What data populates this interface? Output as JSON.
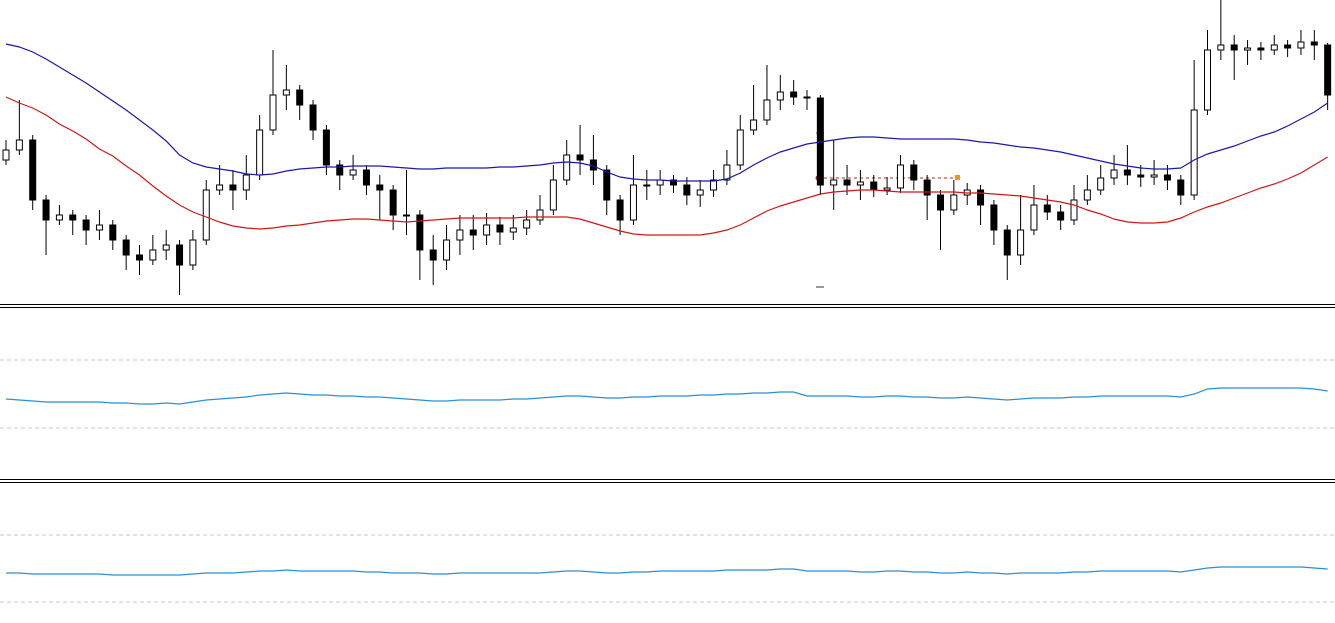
{
  "chart_data": [
    {
      "type": "candlestick",
      "up_color": "#ffffff",
      "down_color": "#000000",
      "ylim": [
        0,
        305
      ],
      "open": [
        145,
        155,
        165,
        105,
        85,
        90,
        85,
        75,
        80,
        65,
        50,
        45,
        55,
        60,
        40,
        65,
        115,
        120,
        115,
        130,
        175,
        210,
        215,
        200,
        175,
        140,
        130,
        135,
        120,
        115,
        90,
        90,
        55,
        45,
        65,
        75,
        70,
        80,
        73,
        77,
        85,
        95,
        125,
        150,
        145,
        135,
        105,
        85,
        120,
        120,
        125,
        120,
        110,
        115,
        125,
        140,
        175,
        185,
        205,
        213,
        208,
        207,
        120,
        125,
        120,
        123,
        115,
        117,
        140,
        125,
        110,
        95,
        110,
        115,
        100,
        75,
        50,
        75,
        100,
        93,
        85,
        105,
        115,
        127,
        135,
        130,
        128,
        130,
        125,
        110,
        195,
        255,
        260,
        255,
        257,
        255,
        260,
        257,
        263,
        260
      ],
      "high": [
        165,
        205,
        170,
        110,
        100,
        95,
        90,
        95,
        85,
        70,
        60,
        70,
        75,
        65,
        75,
        125,
        140,
        135,
        150,
        190,
        255,
        240,
        220,
        205,
        180,
        145,
        150,
        140,
        130,
        120,
        135,
        95,
        70,
        80,
        90,
        90,
        92,
        88,
        90,
        95,
        110,
        140,
        165,
        180,
        170,
        140,
        110,
        150,
        135,
        135,
        130,
        128,
        125,
        135,
        155,
        190,
        220,
        240,
        230,
        225,
        215,
        210,
        165,
        140,
        135,
        130,
        128,
        150,
        145,
        130,
        115,
        125,
        122,
        120,
        105,
        80,
        110,
        120,
        110,
        100,
        120,
        130,
        140,
        150,
        160,
        140,
        145,
        140,
        130,
        245,
        275,
        305,
        270,
        265,
        263,
        270,
        265,
        275,
        275,
        262
      ],
      "low": [
        140,
        150,
        95,
        50,
        80,
        70,
        60,
        65,
        55,
        35,
        30,
        40,
        45,
        10,
        35,
        60,
        110,
        95,
        105,
        125,
        170,
        195,
        185,
        165,
        130,
        115,
        125,
        110,
        85,
        75,
        70,
        25,
        20,
        35,
        50,
        55,
        60,
        60,
        65,
        70,
        80,
        90,
        120,
        130,
        120,
        90,
        70,
        80,
        105,
        110,
        112,
        100,
        98,
        108,
        120,
        135,
        170,
        180,
        195,
        200,
        195,
        110,
        95,
        110,
        105,
        108,
        110,
        112,
        115,
        85,
        55,
        90,
        100,
        80,
        60,
        25,
        40,
        70,
        85,
        75,
        80,
        100,
        110,
        120,
        120,
        118,
        120,
        115,
        100,
        105,
        190,
        245,
        225,
        240,
        245,
        250,
        248,
        250,
        245,
        195
      ],
      "close": [
        155,
        165,
        105,
        85,
        90,
        85,
        75,
        80,
        65,
        50,
        45,
        55,
        60,
        40,
        65,
        115,
        120,
        115,
        130,
        175,
        210,
        215,
        200,
        175,
        140,
        130,
        135,
        120,
        115,
        90,
        90,
        55,
        45,
        65,
        75,
        70,
        80,
        73,
        77,
        85,
        95,
        125,
        150,
        145,
        135,
        105,
        85,
        120,
        120,
        125,
        120,
        110,
        115,
        125,
        140,
        175,
        185,
        205,
        213,
        208,
        207,
        120,
        125,
        120,
        123,
        115,
        117,
        140,
        125,
        110,
        95,
        110,
        115,
        100,
        75,
        50,
        75,
        100,
        93,
        85,
        105,
        115,
        127,
        135,
        130,
        128,
        130,
        125,
        110,
        195,
        255,
        260,
        255,
        257,
        255,
        260,
        257,
        263,
        260,
        210
      ],
      "series": [
        {
          "color": "#1a1aa8",
          "values": [
            261,
            258,
            253,
            246,
            238,
            230,
            222,
            213,
            204,
            195,
            185,
            175,
            164,
            150,
            142,
            138,
            136,
            134,
            131,
            130,
            131,
            134,
            136,
            137,
            138,
            138,
            139,
            139,
            139,
            138,
            137,
            136,
            136,
            137,
            137,
            137,
            137,
            138,
            138,
            139,
            140,
            142,
            143,
            142,
            139,
            133,
            128,
            126,
            125,
            125,
            124,
            124,
            124,
            124,
            126,
            132,
            140,
            147,
            153,
            157,
            161,
            163,
            165,
            167,
            168,
            168,
            167,
            166,
            166,
            166,
            166,
            166,
            165,
            163,
            162,
            160,
            158,
            157,
            155,
            153,
            150,
            147,
            144,
            141,
            139,
            137,
            136,
            136,
            137,
            145,
            151,
            155,
            159,
            164,
            169,
            173,
            179,
            186,
            193,
            202
          ]
        },
        {
          "color": "#d01818",
          "values": [
            208,
            202,
            197,
            190,
            181,
            174,
            166,
            156,
            149,
            139,
            130,
            119,
            109,
            100,
            93,
            88,
            83,
            79,
            77,
            76,
            77,
            79,
            80,
            82,
            84,
            85,
            86,
            86,
            85,
            84,
            83,
            84,
            85,
            86,
            87,
            87,
            87,
            87,
            87,
            88,
            88,
            88,
            88,
            86,
            82,
            78,
            74,
            71,
            70,
            70,
            70,
            70,
            70,
            72,
            75,
            80,
            87,
            94,
            99,
            103,
            107,
            111,
            113,
            114,
            115,
            115,
            114,
            113,
            113,
            113,
            113,
            113,
            112,
            112,
            111,
            110,
            109,
            107,
            105,
            103,
            100,
            95,
            91,
            86,
            83,
            82,
            82,
            83,
            87,
            93,
            98,
            102,
            107,
            112,
            117,
            121,
            126,
            132,
            140,
            148
          ]
        }
      ]
    },
    {
      "type": "line",
      "color": "#2a8fd6",
      "ylim": [
        0,
        168
      ],
      "yticks": [
        50,
        118
      ],
      "grid": true,
      "values": [
        79,
        78,
        77,
        76,
        76,
        76,
        76,
        76,
        75,
        75,
        74,
        74,
        75,
        74,
        76,
        78,
        79,
        80,
        81,
        83,
        84,
        85,
        84,
        83,
        83,
        82,
        82,
        81,
        81,
        80,
        79,
        78,
        77,
        77,
        78,
        78,
        78,
        78,
        79,
        79,
        80,
        81,
        82,
        82,
        81,
        80,
        80,
        81,
        81,
        82,
        82,
        82,
        83,
        83,
        84,
        84,
        85,
        85,
        86,
        86,
        82,
        82,
        82,
        82,
        81,
        81,
        82,
        82,
        81,
        81,
        80,
        80,
        81,
        80,
        79,
        78,
        79,
        80,
        80,
        80,
        81,
        81,
        82,
        82,
        82,
        82,
        82,
        82,
        81,
        84,
        89,
        90,
        90,
        90,
        90,
        90,
        90,
        90,
        89,
        87
      ]
    },
    {
      "type": "line",
      "color": "#2a8fd6",
      "ylim": [
        0,
        138
      ],
      "yticks": [
        21,
        88
      ],
      "grid": true,
      "values": [
        50,
        50,
        49,
        49,
        49,
        49,
        49,
        49,
        48,
        48,
        48,
        48,
        48,
        48,
        49,
        50,
        50,
        50,
        51,
        52,
        52,
        53,
        52,
        52,
        52,
        52,
        52,
        51,
        51,
        50,
        50,
        50,
        49,
        49,
        50,
        50,
        50,
        50,
        50,
        50,
        50,
        51,
        52,
        52,
        51,
        50,
        50,
        51,
        51,
        52,
        52,
        52,
        52,
        52,
        53,
        53,
        53,
        53,
        54,
        54,
        52,
        52,
        52,
        52,
        51,
        51,
        52,
        52,
        51,
        51,
        50,
        50,
        51,
        50,
        50,
        49,
        50,
        50,
        50,
        50,
        51,
        51,
        52,
        52,
        52,
        52,
        52,
        52,
        51,
        53,
        55,
        56,
        56,
        56,
        56,
        56,
        56,
        56,
        55,
        54
      ]
    }
  ]
}
